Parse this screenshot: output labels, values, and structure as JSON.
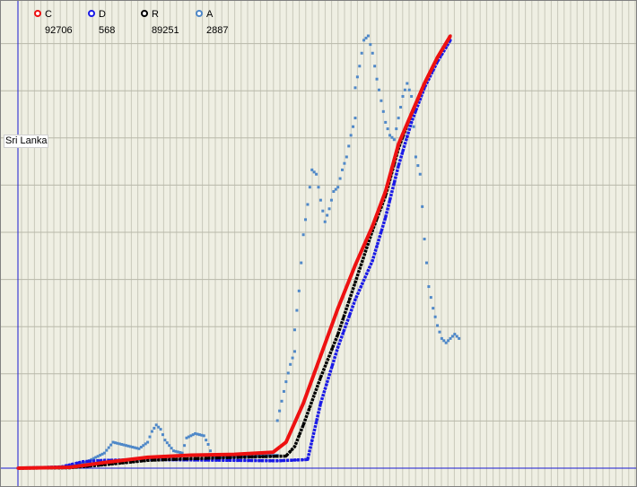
{
  "country": "Sri Lanka",
  "legend": [
    {
      "key": "C",
      "value": "92706",
      "color": "#ee1111"
    },
    {
      "key": "D",
      "value": "568",
      "color": "#1a1ae6"
    },
    {
      "key": "R",
      "value": "89251",
      "color": "#000000"
    },
    {
      "key": "A",
      "value": "2887",
      "color": "#4f88c8"
    }
  ],
  "chart_data": {
    "type": "scatter",
    "title": "",
    "xlabel": "",
    "ylabel": "",
    "xlim": [
      0,
      100
    ],
    "ylim": [
      0,
      100
    ],
    "grid": true,
    "legend_position": "top-left",
    "series": [
      {
        "key": "C",
        "color": "#ee1111",
        "points": [
          [
            0,
            0
          ],
          [
            12,
            0.2
          ],
          [
            20,
            1.3
          ],
          [
            30,
            2.5
          ],
          [
            40,
            3.0
          ],
          [
            50,
            3.2
          ],
          [
            59,
            3.7
          ],
          [
            62,
            6
          ],
          [
            66,
            15
          ],
          [
            70,
            26
          ],
          [
            74,
            37
          ],
          [
            78,
            47
          ],
          [
            82,
            56
          ],
          [
            85,
            64
          ],
          [
            88,
            75
          ],
          [
            91,
            82
          ],
          [
            94,
            89
          ],
          [
            97,
            95
          ],
          [
            100,
            100
          ]
        ]
      },
      {
        "key": "R",
        "color": "#000000",
        "points": [
          [
            0,
            0
          ],
          [
            12,
            0.1
          ],
          [
            20,
            0.8
          ],
          [
            30,
            1.8
          ],
          [
            40,
            2.2
          ],
          [
            50,
            2.5
          ],
          [
            62,
            2.8
          ],
          [
            64,
            5
          ],
          [
            66,
            10
          ],
          [
            70,
            21
          ],
          [
            74,
            31
          ],
          [
            78,
            43
          ],
          [
            82,
            55
          ],
          [
            85,
            63
          ],
          [
            88,
            74
          ],
          [
            91,
            82
          ],
          [
            94,
            89
          ],
          [
            97,
            95
          ],
          [
            100,
            100
          ]
        ]
      },
      {
        "key": "D",
        "color": "#1a1ae6",
        "points": [
          [
            0,
            0
          ],
          [
            10,
            0.3
          ],
          [
            15,
            1.5
          ],
          [
            20,
            1.8
          ],
          [
            30,
            2.0
          ],
          [
            40,
            1.9
          ],
          [
            50,
            1.8
          ],
          [
            60,
            1.7
          ],
          [
            67,
            2
          ],
          [
            70,
            15
          ],
          [
            74,
            28
          ],
          [
            78,
            39
          ],
          [
            82,
            48
          ],
          [
            85,
            58
          ],
          [
            88,
            70
          ],
          [
            91,
            80
          ],
          [
            94,
            88
          ],
          [
            97,
            94
          ],
          [
            100,
            99
          ]
        ]
      },
      {
        "key": "A",
        "color": "#4f88c8",
        "points": [
          [
            12,
            0.3
          ],
          [
            16,
            1.5
          ],
          [
            20,
            3.5
          ],
          [
            22,
            6
          ],
          [
            24,
            5.5
          ],
          [
            28,
            4.5
          ],
          [
            30,
            6
          ],
          [
            31,
            8.5
          ],
          [
            32,
            10
          ],
          [
            33,
            9
          ],
          [
            34,
            6.5
          ],
          [
            36,
            4
          ],
          [
            38,
            3.5
          ],
          [
            39,
            7
          ],
          [
            41,
            8
          ],
          [
            43,
            7.5
          ],
          [
            44,
            5.5
          ],
          [
            45,
            2.5
          ],
          [
            60,
            3
          ],
          [
            60,
            11
          ],
          [
            62,
            20
          ],
          [
            63,
            24
          ],
          [
            64,
            27
          ],
          [
            64,
            32
          ],
          [
            65,
            41
          ],
          [
            66,
            54
          ],
          [
            67,
            61
          ],
          [
            68,
            69
          ],
          [
            69,
            68
          ],
          [
            70,
            62
          ],
          [
            71,
            57
          ],
          [
            72,
            60
          ],
          [
            73,
            64
          ],
          [
            74,
            65
          ],
          [
            75,
            69
          ],
          [
            76,
            72
          ],
          [
            77,
            77
          ],
          [
            78,
            81
          ],
          [
            78,
            88
          ],
          [
            79,
            93
          ],
          [
            80,
            99
          ],
          [
            81,
            100
          ],
          [
            82,
            96
          ],
          [
            83,
            90
          ],
          [
            84,
            85
          ],
          [
            85,
            80
          ],
          [
            86,
            77
          ],
          [
            87,
            76
          ],
          [
            88,
            81
          ],
          [
            89,
            86
          ],
          [
            90,
            89
          ],
          [
            91,
            86
          ],
          [
            92,
            72
          ],
          [
            93,
            68
          ],
          [
            94,
            53
          ],
          [
            95,
            42
          ],
          [
            96,
            37
          ],
          [
            97,
            33
          ],
          [
            98,
            30
          ],
          [
            99,
            29
          ],
          [
            100,
            30
          ],
          [
            101,
            31
          ],
          [
            102,
            30
          ]
        ]
      }
    ]
  }
}
